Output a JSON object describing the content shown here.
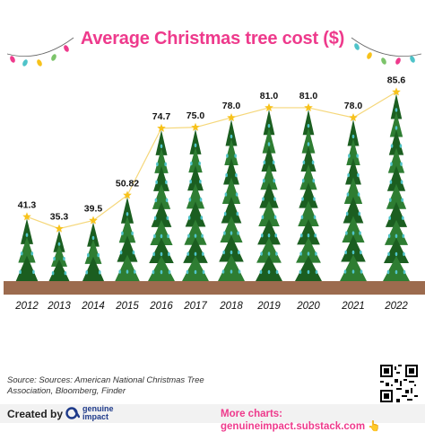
{
  "title": "Average Christmas tree cost  ($)",
  "source_text": "Source: Sources: American National Christmas Tree Association, Bloomberg, Finder",
  "footer": {
    "created_by": "Created by",
    "brand_name_line1": "genuine",
    "brand_name_line2": "impact",
    "more_charts": "More charts: genuineimpact.substack.com 👆"
  },
  "colors": {
    "title": "#ee3a8c",
    "tree": "#2e7d32",
    "tree_dark": "#1b5e20",
    "ornament": "#4fc3c9",
    "star": "#f7c21b",
    "trendline": "#f5d77a",
    "ground": "#9c6b4e",
    "lights": [
      "#ee3a8c",
      "#4fc3c9",
      "#f7c21b",
      "#7cc46a"
    ]
  },
  "chart_data": {
    "type": "line",
    "categories": [
      "2012",
      "2013",
      "2014",
      "2015",
      "2016",
      "2017",
      "2018",
      "2019",
      "2020",
      "2021",
      "2022"
    ],
    "values": [
      41.3,
      35.3,
      39.5,
      50.82,
      74.7,
      75.0,
      78.0,
      81.0,
      81.0,
      78.0,
      85.6
    ],
    "value_labels": [
      "41.3",
      "35.3",
      "39.5",
      "50.82",
      "74.7",
      "75.0",
      "78.0",
      "81.0",
      "81.0",
      "78.0",
      "85.6"
    ],
    "title": "Average Christmas tree cost  ($)",
    "xlabel": "",
    "ylabel": "",
    "ylim": [
      0,
      90
    ],
    "grid": false,
    "marker": "christmas-tree-with-star"
  }
}
